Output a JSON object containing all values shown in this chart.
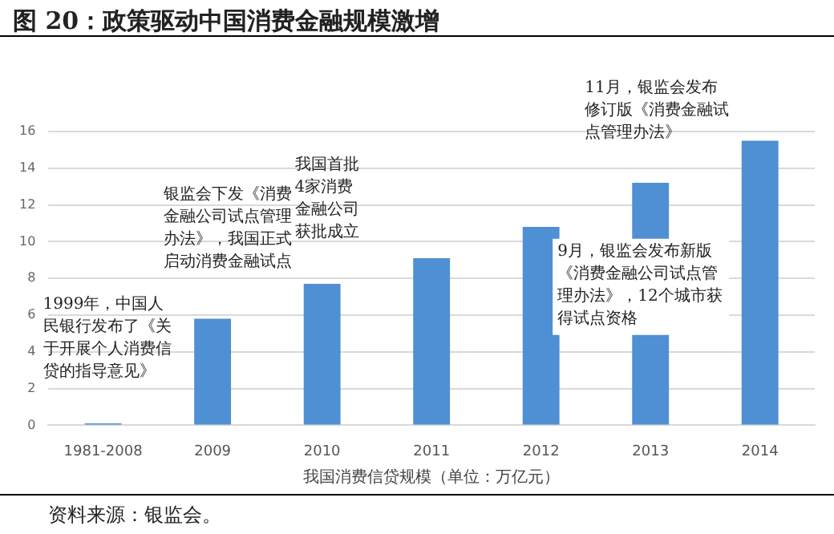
{
  "chart_data": {
    "type": "bar",
    "title": "图 20：政策驱动中国消费金融规模激增",
    "xlabel": "我国消费信贷规模（单位：万亿元）",
    "categories": [
      "1981-2008",
      "2009",
      "2010",
      "2011",
      "2012",
      "2013",
      "2014"
    ],
    "values": [
      0.1,
      5.8,
      7.7,
      9.1,
      10.8,
      13.2,
      15.5
    ],
    "color": "#4f8fd3",
    "ylim": [
      0,
      16
    ],
    "yticks": [
      0,
      2,
      4,
      6,
      8,
      10,
      12,
      14,
      16
    ],
    "grid": "y",
    "annotations": [
      "1999年，中国人民银行发布了《关于开展个人消费信贷的指导意见》",
      "银监会下发《消费金融公司试点管理办法》，我国正式启动消费金融试点",
      "我国首批4家消费金融公司获批成立",
      "11月，银监会发布修订版《消费金融试点管理办法》",
      "9月，银监会发布新版《消费金融公司试点管理办法》，12个城市获得试点资格",
      "资料来源：银监会。"
    ]
  }
}
